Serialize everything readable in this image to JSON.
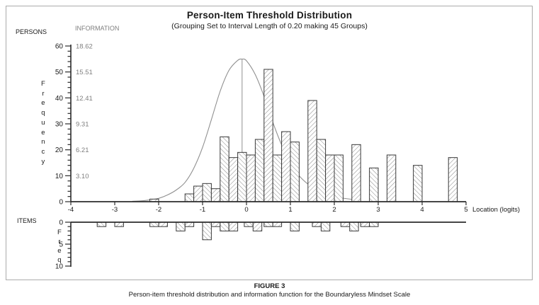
{
  "title": "Person-Item Threshold Distribution",
  "subtitle": "(Grouping Set to Interval Length of 0.20 making 45 Groups)",
  "labels": {
    "persons": "PERSONS",
    "information": "INFORMATION",
    "items": "ITEMS",
    "frequency_vertical": "Frequency",
    "items_freq_vertical": "Freq",
    "x_axis": "Location (logits)"
  },
  "caption": {
    "label": "FIGURE 3",
    "text": "Person-item threshold distribution and information function for the Boundaryless Mindset Scale"
  },
  "colors": {
    "axis": "#2b2b2b",
    "bar_stroke": "#3a3a3a",
    "hatch": "#8f8f8f",
    "curve": "#909090",
    "info_text": "#7f7f7f",
    "tick_text": "#1a1a1a"
  },
  "chart_data": {
    "type": "bar",
    "title": "Person-Item Threshold Distribution",
    "subtitle": "(Grouping Set to Interval Length of 0.20 making 45 Groups)",
    "xlabel": "Location (logits)",
    "x_axis": {
      "min": -4,
      "max": 5,
      "ticks": [
        -4,
        -3,
        -2,
        -1,
        0,
        1,
        2,
        3,
        4,
        5
      ]
    },
    "persons_y_axis": {
      "label": "Frequency",
      "min": 0,
      "max": 60,
      "ticks": [
        0,
        10,
        20,
        30,
        40,
        50,
        60
      ],
      "minor_tick_step": 2
    },
    "information_axis": {
      "label": "INFORMATION",
      "tick_labels": [
        "3.10",
        "6.21",
        "9.31",
        "12.41",
        "15.51",
        "18.62"
      ],
      "at_person_frequency": [
        10,
        20,
        30,
        40,
        50,
        60
      ],
      "max": 18.62
    },
    "items_y_axis": {
      "label": "Freq",
      "min": 0,
      "max": 10,
      "ticks": [
        0,
        5,
        10
      ],
      "minor_tick_step": 1,
      "direction": "down"
    },
    "bin_width": 0.2,
    "persons_histogram": [
      [
        -2.2,
        1
      ],
      [
        -1.4,
        3
      ],
      [
        -1.2,
        6
      ],
      [
        -1.0,
        7
      ],
      [
        -0.8,
        5
      ],
      [
        -0.6,
        25
      ],
      [
        -0.4,
        17
      ],
      [
        -0.2,
        19
      ],
      [
        0.0,
        18
      ],
      [
        0.2,
        24
      ],
      [
        0.4,
        51
      ],
      [
        0.6,
        18
      ],
      [
        0.8,
        27
      ],
      [
        1.0,
        23
      ],
      [
        1.4,
        39
      ],
      [
        1.6,
        24
      ],
      [
        1.8,
        18
      ],
      [
        2.0,
        18
      ],
      [
        2.4,
        22
      ],
      [
        2.8,
        13
      ],
      [
        3.2,
        18
      ],
      [
        3.8,
        14
      ],
      [
        4.6,
        17
      ]
    ],
    "items_histogram": [
      [
        -3.4,
        1
      ],
      [
        -3.0,
        1
      ],
      [
        -2.2,
        1
      ],
      [
        -2.0,
        1
      ],
      [
        -1.6,
        2
      ],
      [
        -1.4,
        1
      ],
      [
        -1.0,
        4
      ],
      [
        -0.8,
        1
      ],
      [
        -0.6,
        2
      ],
      [
        -0.4,
        2
      ],
      [
        -0.05,
        1
      ],
      [
        0.15,
        2
      ],
      [
        0.4,
        1
      ],
      [
        0.6,
        1
      ],
      [
        1.0,
        2
      ],
      [
        1.5,
        1
      ],
      [
        1.7,
        2
      ],
      [
        2.15,
        1
      ],
      [
        2.35,
        2
      ],
      [
        2.6,
        1
      ],
      [
        2.8,
        1
      ]
    ],
    "information_curve_points": [
      [
        -2.6,
        0.05
      ],
      [
        -2.4,
        0.1
      ],
      [
        -2.2,
        0.22
      ],
      [
        -2.0,
        0.4
      ],
      [
        -1.8,
        0.8
      ],
      [
        -1.6,
        1.4
      ],
      [
        -1.4,
        2.3
      ],
      [
        -1.2,
        4.0
      ],
      [
        -1.0,
        6.5
      ],
      [
        -0.8,
        9.8
      ],
      [
        -0.6,
        13.2
      ],
      [
        -0.4,
        15.7
      ],
      [
        -0.2,
        16.9
      ],
      [
        -0.1,
        17.05
      ],
      [
        0.0,
        16.85
      ],
      [
        0.2,
        15.2
      ],
      [
        0.4,
        12.6
      ],
      [
        0.6,
        9.5
      ],
      [
        0.8,
        6.8
      ],
      [
        1.0,
        4.7
      ],
      [
        1.2,
        3.1
      ],
      [
        1.4,
        2.1
      ],
      [
        1.6,
        1.4
      ],
      [
        1.8,
        0.95
      ],
      [
        2.0,
        0.62
      ],
      [
        2.2,
        0.42
      ],
      [
        2.4,
        0.28
      ],
      [
        2.6,
        0.18
      ]
    ],
    "information_peak_line": {
      "x": -0.1,
      "info": 17.05,
      "drop_to_frequency": 19
    }
  }
}
